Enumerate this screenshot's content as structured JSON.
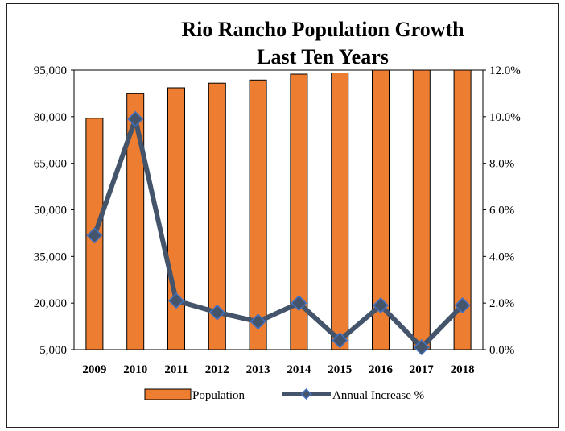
{
  "chart_data": {
    "type": "bar+line",
    "title_lines": [
      "Rio Rancho Population Growth",
      "Last Ten Years"
    ],
    "categories": [
      "2009",
      "2010",
      "2011",
      "2012",
      "2013",
      "2014",
      "2015",
      "2016",
      "2017",
      "2018"
    ],
    "series": [
      {
        "name": "Population",
        "type": "bar",
        "axis": "left",
        "color": "#ED7D31",
        "values": [
          79500,
          87400,
          89300,
          90800,
          91800,
          93700,
          94100,
          96000,
          96100,
          98000
        ]
      },
      {
        "name": "Annual Increase %",
        "type": "line",
        "axis": "right",
        "color": "#44546A",
        "marker_color": "#4472C4",
        "values": [
          4.9,
          9.9,
          2.1,
          1.6,
          1.2,
          2.0,
          0.4,
          1.9,
          0.1,
          1.9
        ]
      }
    ],
    "y_left": {
      "range": [
        5000,
        95000
      ],
      "ticks": [
        5000,
        20000,
        35000,
        50000,
        65000,
        80000,
        95000
      ],
      "tick_labels": [
        "5,000",
        "20,000",
        "35,000",
        "50,000",
        "65,000",
        "80,000",
        "95,000"
      ]
    },
    "y_right": {
      "range": [
        0,
        12
      ],
      "ticks": [
        0,
        2,
        4,
        6,
        8,
        10,
        12
      ],
      "tick_labels": [
        "0.0%",
        "2.0%",
        "4.0%",
        "6.0%",
        "8.0%",
        "10.0%",
        "12.0%"
      ]
    },
    "grid": false,
    "legend_position": "bottom"
  }
}
